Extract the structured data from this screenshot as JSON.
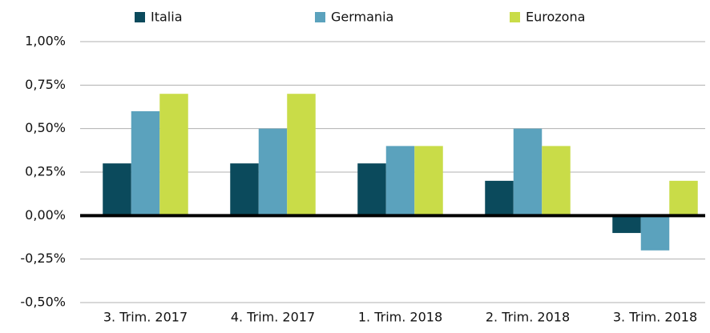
{
  "chart_data": {
    "type": "bar",
    "categories": [
      "3. Trim. 2017",
      "4. Trim. 2017",
      "1. Trim. 2018",
      "2. Trim. 2018",
      "3. Trim. 2018"
    ],
    "series": [
      {
        "name": "Italia",
        "color": "#0b4a5c",
        "values": [
          0.3,
          0.3,
          0.3,
          0.2,
          -0.1
        ]
      },
      {
        "name": "Germania",
        "color": "#5ba2bd",
        "values": [
          0.6,
          0.5,
          0.4,
          0.5,
          -0.2
        ]
      },
      {
        "name": "Eurozona",
        "color": "#c9dc48",
        "values": [
          0.7,
          0.7,
          0.4,
          0.4,
          0.2
        ]
      }
    ],
    "ylim": [
      -0.5,
      1
    ],
    "yticks": [
      {
        "value": -0.5,
        "label": "-0,50%"
      },
      {
        "value": -0.25,
        "label": "-0,25%"
      },
      {
        "value": 0,
        "label": "0,00%"
      },
      {
        "value": 0.25,
        "label": "0,25%"
      },
      {
        "value": 0.5,
        "label": "0,50%"
      },
      {
        "value": 0.75,
        "label": "0,75%"
      },
      {
        "value": 1,
        "label": "1,00%"
      }
    ],
    "grid": true,
    "legend": "top"
  }
}
